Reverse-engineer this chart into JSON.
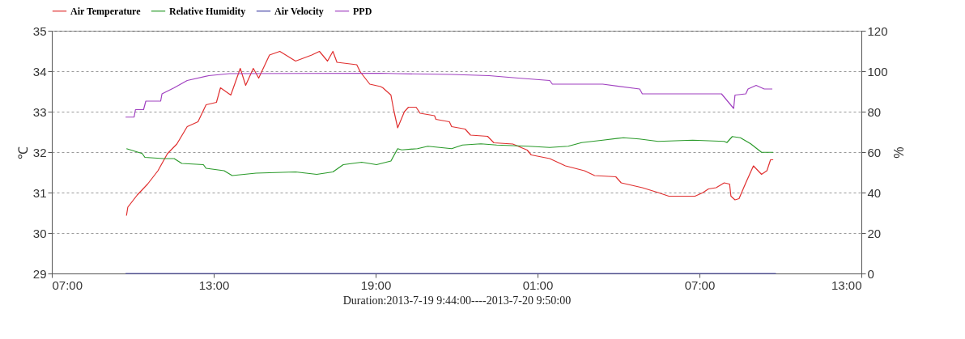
{
  "chart_data": {
    "type": "line",
    "xlabel": "Duration:2013-7-19 9:44:00----2013-7-20 9:50:00",
    "ylabel": "℃",
    "y2label": "%",
    "xlim": [
      "2013-07-19T07:00",
      "2013-07-20T13:00"
    ],
    "xticks": [
      {
        "value": "2013-07-19T07:00",
        "label": "07:00"
      },
      {
        "value": "2013-07-19T13:00",
        "label": "13:00"
      },
      {
        "value": "2013-07-19T19:00",
        "label": "19:00"
      },
      {
        "value": "2013-07-20T01:00",
        "label": "01:00"
      },
      {
        "value": "2013-07-20T07:00",
        "label": "07:00"
      },
      {
        "value": "2013-07-20T13:00",
        "label": "13:00"
      }
    ],
    "ylim": [
      29,
      35
    ],
    "yticks": [
      29,
      30,
      31,
      32,
      33,
      34,
      35
    ],
    "y2lim": [
      0,
      120
    ],
    "y2ticks": [
      0,
      20,
      40,
      60,
      80,
      100,
      120
    ],
    "grid": "y",
    "legend": "top",
    "marker": "none",
    "line_style": "solid",
    "series": [
      {
        "name": "Air Temperature",
        "color": "#e03030",
        "x": [
          "2013-07-19T09:46",
          "2013-07-19T09:49",
          "2013-07-19T10:10",
          "2013-07-19T10:33",
          "2013-07-19T10:56",
          "2013-07-19T11:17",
          "2013-07-19T11:38",
          "2013-07-19T12:01",
          "2013-07-19T12:25",
          "2013-07-19T12:43",
          "2013-07-19T13:06",
          "2013-07-19T13:15",
          "2013-07-19T13:38",
          "2013-07-19T13:59",
          "2013-07-19T14:11",
          "2013-07-19T14:28",
          "2013-07-19T14:40",
          "2013-07-19T15:04",
          "2013-07-19T15:27",
          "2013-07-19T16:02",
          "2013-07-19T16:38",
          "2013-07-19T16:55",
          "2013-07-19T17:13",
          "2013-07-19T17:25",
          "2013-07-19T17:34",
          "2013-07-19T18:18",
          "2013-07-19T18:26",
          "2013-07-19T18:47",
          "2013-07-19T19:11",
          "2013-07-19T19:16",
          "2013-07-19T19:34",
          "2013-07-19T19:40",
          "2013-07-19T19:49",
          "2013-07-19T20:04",
          "2013-07-19T20:13",
          "2013-07-19T20:30",
          "2013-07-19T20:39",
          "2013-07-19T21:11",
          "2013-07-19T21:14",
          "2013-07-19T21:44",
          "2013-07-19T21:49",
          "2013-07-19T22:19",
          "2013-07-19T22:31",
          "2013-07-19T23:09",
          "2013-07-19T23:23",
          "2013-07-20T00:05",
          "2013-07-20T00:37",
          "2013-07-20T00:46",
          "2013-07-20T01:27",
          "2013-07-20T02:02",
          "2013-07-20T02:44",
          "2013-07-20T03:07",
          "2013-07-20T03:54",
          "2013-07-20T04:06",
          "2013-07-20T04:53",
          "2013-07-20T05:28",
          "2013-07-20T05:52",
          "2013-07-20T06:50",
          "2013-07-20T07:08",
          "2013-07-20T07:20",
          "2013-07-20T07:37",
          "2013-07-20T07:55",
          "2013-07-20T08:07",
          "2013-07-20T08:10",
          "2013-07-20T08:19",
          "2013-07-20T08:28",
          "2013-07-20T08:43",
          "2013-07-20T09:00",
          "2013-07-20T09:18",
          "2013-07-20T09:30",
          "2013-07-20T09:38",
          "2013-07-20T09:44"
        ],
        "values": [
          30.43,
          30.64,
          30.94,
          31.21,
          31.54,
          31.96,
          32.2,
          32.63,
          32.75,
          33.17,
          33.23,
          33.59,
          33.41,
          34.07,
          33.65,
          34.07,
          33.83,
          34.4,
          34.49,
          34.25,
          34.4,
          34.49,
          34.25,
          34.49,
          34.22,
          34.16,
          33.98,
          33.68,
          33.62,
          33.59,
          33.41,
          33.05,
          32.6,
          33.0,
          33.11,
          33.11,
          32.96,
          32.9,
          32.81,
          32.75,
          32.63,
          32.57,
          32.42,
          32.39,
          32.23,
          32.2,
          32.05,
          31.93,
          31.84,
          31.66,
          31.54,
          31.42,
          31.39,
          31.24,
          31.12,
          31.0,
          30.91,
          30.91,
          31.0,
          31.09,
          31.12,
          31.24,
          31.21,
          30.91,
          30.82,
          30.85,
          31.24,
          31.66,
          31.45,
          31.54,
          31.81,
          31.81
        ]
      },
      {
        "name": "Relative Humidity",
        "color": "#2a9a2a",
        "axis": "y2",
        "x": [
          "2013-07-19T09:46",
          "2013-07-19T10:21",
          "2013-07-19T10:27",
          "2013-07-19T11:08",
          "2013-07-19T11:32",
          "2013-07-19T11:49",
          "2013-07-19T12:37",
          "2013-07-19T12:43",
          "2013-07-19T13:23",
          "2013-07-19T13:41",
          "2013-07-19T14:34",
          "2013-07-19T16:02",
          "2013-07-19T16:49",
          "2013-07-19T17:25",
          "2013-07-19T17:48",
          "2013-07-19T18:29",
          "2013-07-19T19:02",
          "2013-07-19T19:34",
          "2013-07-19T19:49",
          "2013-07-19T19:58",
          "2013-07-19T20:33",
          "2013-07-19T20:56",
          "2013-07-19T21:49",
          "2013-07-19T22:13",
          "2013-07-19T22:54",
          "2013-07-19T23:29",
          "2013-07-20T00:40",
          "2013-07-20T01:27",
          "2013-07-20T02:08",
          "2013-07-20T02:38",
          "2013-07-20T03:25",
          "2013-07-20T04:11",
          "2013-07-20T04:46",
          "2013-07-20T05:28",
          "2013-07-20T06:45",
          "2013-07-20T07:55",
          "2013-07-20T08:01",
          "2013-07-20T08:13",
          "2013-07-20T08:31",
          "2013-07-20T08:54",
          "2013-07-20T09:18",
          "2013-07-20T09:44"
        ],
        "values": [
          61.7,
          59.3,
          57.4,
          56.8,
          56.8,
          54.4,
          53.8,
          52.0,
          50.8,
          48.4,
          49.6,
          50.2,
          49.0,
          50.2,
          53.8,
          55.0,
          53.8,
          55.6,
          61.7,
          61.1,
          61.7,
          62.9,
          61.7,
          63.5,
          64.1,
          63.5,
          62.9,
          62.3,
          62.9,
          64.7,
          65.9,
          67.1,
          66.5,
          65.3,
          65.9,
          65.3,
          64.7,
          67.7,
          67.1,
          64.1,
          59.9,
          59.9
        ]
      },
      {
        "name": "Air Velocity",
        "color": "#4848a8",
        "axis": "y2",
        "x": [
          "2013-07-19T09:44",
          "2013-07-20T09:50"
        ],
        "values": [
          0,
          0
        ]
      },
      {
        "name": "PPD",
        "color": "#a040c0",
        "axis": "y2",
        "x": [
          "2013-07-19T09:44",
          "2013-07-19T10:03",
          "2013-07-19T10:06",
          "2013-07-19T10:24",
          "2013-07-19T10:29",
          "2013-07-19T11:02",
          "2013-07-19T11:05",
          "2013-07-19T11:32",
          "2013-07-19T12:01",
          "2013-07-19T12:49",
          "2013-07-19T13:35",
          "2013-07-19T19:11",
          "2013-07-19T19:46",
          "2013-07-19T21:49",
          "2013-07-19T23:12",
          "2013-07-20T00:17",
          "2013-07-20T01:27",
          "2013-07-20T01:33",
          "2013-07-20T03:25",
          "2013-07-20T04:47",
          "2013-07-20T04:53",
          "2013-07-20T07:49",
          "2013-07-20T08:16",
          "2013-07-20T08:19",
          "2013-07-20T08:43",
          "2013-07-20T08:48",
          "2013-07-20T09:06",
          "2013-07-20T09:24",
          "2013-07-20T09:42"
        ],
        "values": [
          77.3,
          77.3,
          81.0,
          81.0,
          85.2,
          85.2,
          88.8,
          91.8,
          95.4,
          97.8,
          98.8,
          99.0,
          98.8,
          98.4,
          97.8,
          96.6,
          95.4,
          93.6,
          93.6,
          91.2,
          88.8,
          88.8,
          81.6,
          88.2,
          88.8,
          91.2,
          93.0,
          91.2,
          91.2
        ]
      }
    ]
  }
}
